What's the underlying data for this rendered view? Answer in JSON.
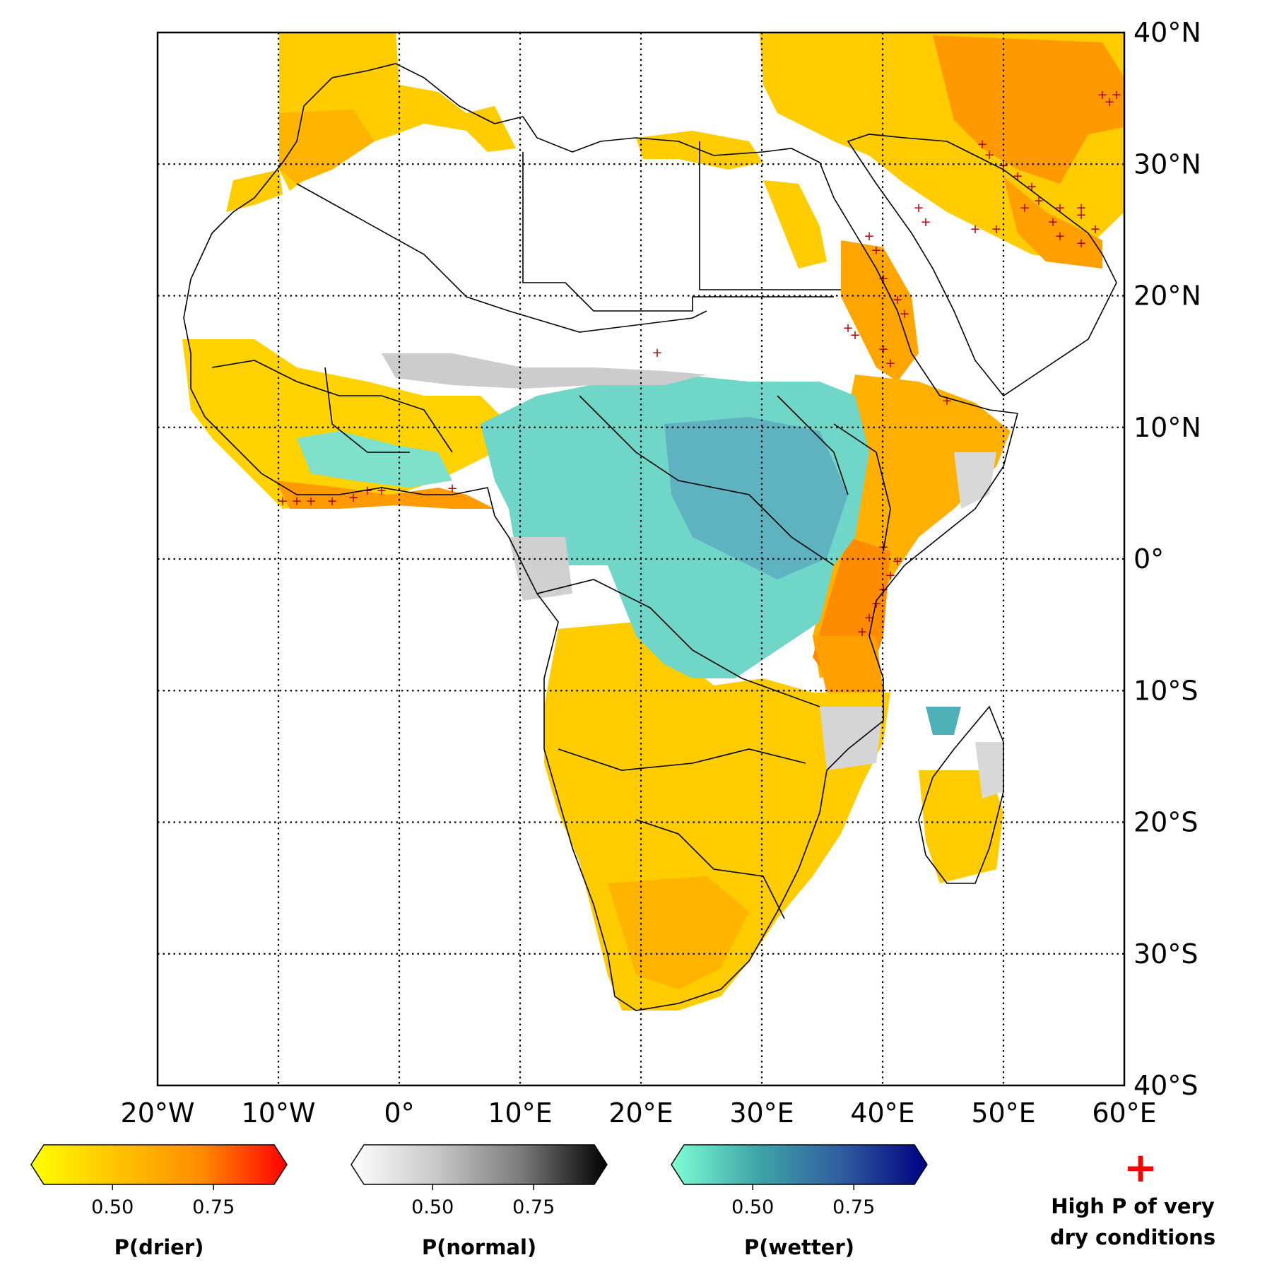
{
  "map": {
    "lon_range": [
      -20,
      60
    ],
    "lat_range": [
      -40,
      40
    ],
    "x_tick_labels": [
      "20°W",
      "10°W",
      "0°",
      "10°E",
      "20°E",
      "30°E",
      "40°E",
      "50°E",
      "60°E"
    ],
    "y_tick_labels": [
      "40°N",
      "30°N",
      "20°N",
      "10°N",
      "0°",
      "10°S",
      "20°S",
      "30°S",
      "40°S"
    ],
    "gridlines": "dotted"
  },
  "colorbars": [
    {
      "title": "P(drier)",
      "ticks": [
        "0.50",
        "0.75"
      ],
      "colors": [
        "#ffff00",
        "#ffc400",
        "#ff8c00",
        "#ff0000"
      ]
    },
    {
      "title": "P(normal)",
      "ticks": [
        "0.50",
        "0.75"
      ],
      "colors": [
        "#ffffff",
        "#c8c8c8",
        "#7a7a7a",
        "#000000"
      ]
    },
    {
      "title": "P(wetter)",
      "ticks": [
        "0.50",
        "0.75"
      ],
      "colors": [
        "#7fffd4",
        "#3fa6a8",
        "#2f5c9f",
        "#000080"
      ]
    }
  ],
  "marker_legend": {
    "symbol": "+",
    "color": "#ff0000",
    "line1": "High P of very",
    "line2": "dry conditions"
  }
}
